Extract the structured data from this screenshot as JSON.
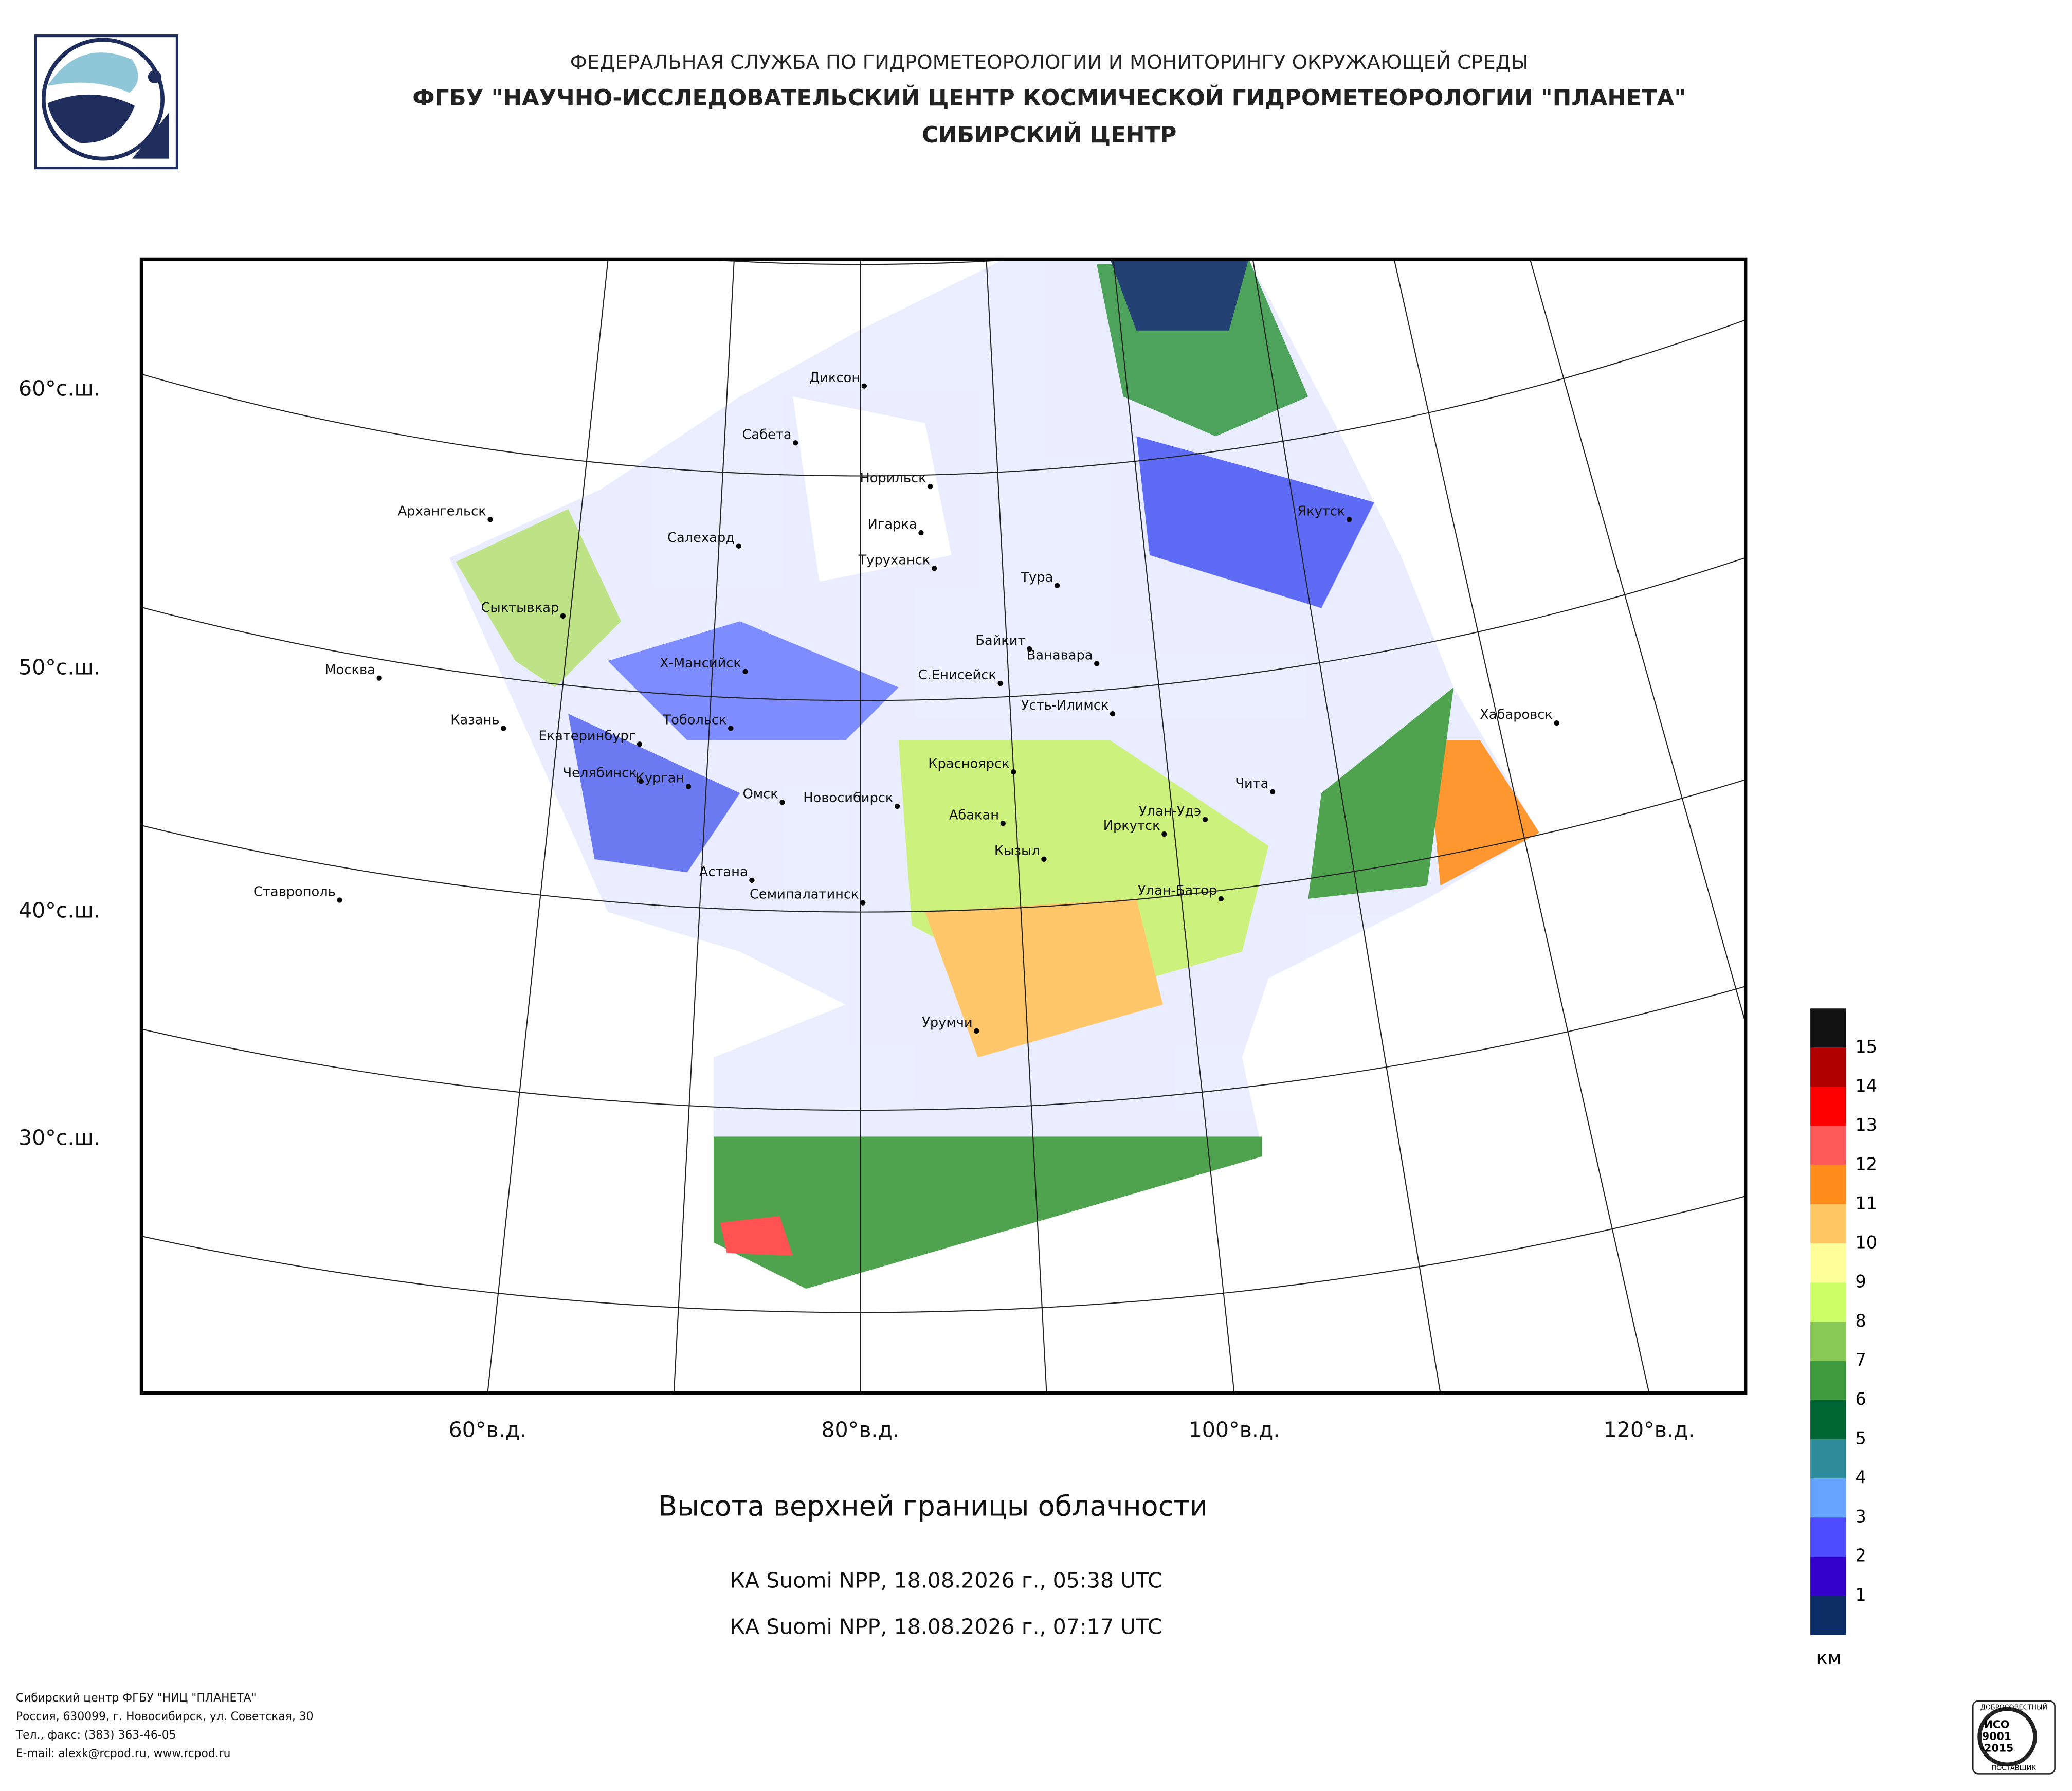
{
  "header": {
    "line1": "ФЕДЕРАЛЬНАЯ СЛУЖБА ПО ГИДРОМЕТЕОРОЛОГИИ И МОНИТОРИНГУ ОКРУЖАЮЩЕЙ СРЕДЫ",
    "line2": "ФГБУ \"НАУЧНО-ИССЛЕДОВАТЕЛЬСКИЙ ЦЕНТР КОСМИЧЕСКОЙ ГИДРОМЕТЕОРОЛОГИИ \"ПЛАНЕТА\"",
    "line3": "СИБИРСКИЙ ЦЕНТР"
  },
  "map": {
    "lat_labels": [
      "60°с.ш.",
      "50°с.ш.",
      "40°с.ш.",
      "30°с.ш."
    ],
    "lon_labels": [
      "60°в.д.",
      "80°в.д.",
      "100°в.д.",
      "120°в.д."
    ],
    "cities": [
      "Диксон",
      "Сабета",
      "Норильск",
      "Игарка",
      "Архангельск",
      "Салехард",
      "Туруханск",
      "Тура",
      "Якутск",
      "Сыктывкар",
      "Байкит",
      "Ванавара",
      "Москва",
      "Х-Мансийск",
      "С.Енисейск",
      "Усть-Илимск",
      "Хабаровск",
      "Казань",
      "Тобольск",
      "Екатеринбург",
      "Красноярск",
      "Челябинск",
      "Курган",
      "Чита",
      "Омск",
      "Новосибирск",
      "Улан-Удэ",
      "Абакан",
      "Иркутск",
      "Кызыл",
      "Астана",
      "Ставрополь",
      "Семипалатинск",
      "Улан-Батор",
      "Урумчи"
    ]
  },
  "legend": {
    "unit": "км",
    "labels": [
      "1",
      "2",
      "3",
      "4",
      "5",
      "6",
      "7",
      "8",
      "9",
      "10",
      "11",
      "12",
      "13",
      "14",
      "15"
    ],
    "colors": [
      "#0d2d66",
      "#3300cc",
      "#4d4dff",
      "#66a3ff",
      "#2e8b9a",
      "#006633",
      "#3d9a3d",
      "#88c855",
      "#ccff66",
      "#ffff99",
      "#ffc864",
      "#ff8c1a",
      "#ff5a5a",
      "#ff0000",
      "#b00000",
      "#111111"
    ]
  },
  "caption": {
    "title": "Высота верхней границы облачности",
    "pass1": "КА Suomi NPP, 18.08.2026 г., 05:38 UTC",
    "pass2": "КА Suomi NPP, 18.08.2026 г., 07:17 UTC"
  },
  "footer": [
    "Сибирский центр ФГБУ \"НИЦ \"ПЛАНЕТА\"",
    "Россия, 630099, г. Новосибирск, ул. Советская, 30",
    "Тел., факс: (383) 363-46-05",
    "E-mail: alexk@rcpod.ru, www.rcpod.ru"
  ],
  "cert": {
    "top": "ДОБРОСОВЕСТНЫЙ",
    "mark": "ИСО",
    "num": "9001",
    "year": "-2015",
    "bottom": "ПОСТАВЩИК"
  }
}
